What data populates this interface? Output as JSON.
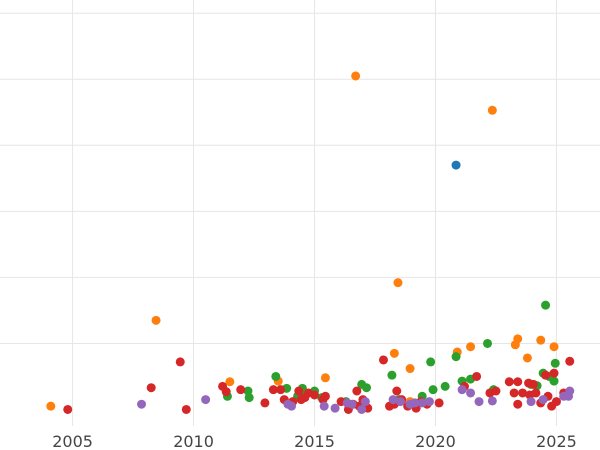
{
  "chart_data": {
    "type": "scatter",
    "title": "",
    "xlabel": "",
    "ylabel": "",
    "xlim": [
      2002.0,
      2026.8
    ],
    "ylim": [
      -0.25,
      6.2
    ],
    "grid": true,
    "legend": "none",
    "x_ticks": [
      2005,
      2010,
      2015,
      2020,
      2025
    ],
    "x_tick_labels": [
      "2005",
      "2010",
      "2015",
      "2020",
      "2025"
    ],
    "y_gridlines": [
      1,
      2,
      3,
      4,
      5,
      6
    ],
    "series": [
      {
        "color": "#1f77b4",
        "points": [
          [
            2020.85,
            3.7
          ]
        ]
      },
      {
        "color": "#ff7f0e",
        "points": [
          [
            2004.1,
            0.05
          ],
          [
            2008.45,
            1.35
          ],
          [
            2011.5,
            0.42
          ],
          [
            2013.5,
            0.43
          ],
          [
            2015.45,
            0.48
          ],
          [
            2016.7,
            5.05
          ],
          [
            2018.3,
            0.85
          ],
          [
            2018.45,
            1.92
          ],
          [
            2018.95,
            0.62
          ],
          [
            2018.95,
            0.12
          ],
          [
            2020.9,
            0.87
          ],
          [
            2021.45,
            0.95
          ],
          [
            2022.35,
            4.53
          ],
          [
            2023.3,
            0.98
          ],
          [
            2023.4,
            1.07
          ],
          [
            2023.8,
            0.78
          ],
          [
            2024.35,
            1.05
          ],
          [
            2024.9,
            0.95
          ]
        ]
      },
      {
        "color": "#2ca02c",
        "points": [
          [
            2011.4,
            0.2
          ],
          [
            2012.25,
            0.28
          ],
          [
            2012.3,
            0.18
          ],
          [
            2013.4,
            0.5
          ],
          [
            2013.85,
            0.32
          ],
          [
            2014.3,
            0.2
          ],
          [
            2014.5,
            0.32
          ],
          [
            2014.6,
            0.25
          ],
          [
            2015.0,
            0.28
          ],
          [
            2015.3,
            0.18
          ],
          [
            2016.3,
            0.12
          ],
          [
            2016.95,
            0.38
          ],
          [
            2017.15,
            0.33
          ],
          [
            2018.2,
            0.52
          ],
          [
            2018.5,
            0.15
          ],
          [
            2019.45,
            0.2
          ],
          [
            2019.8,
            0.72
          ],
          [
            2019.9,
            0.3
          ],
          [
            2020.4,
            0.35
          ],
          [
            2020.85,
            0.8
          ],
          [
            2021.1,
            0.43
          ],
          [
            2021.45,
            0.46
          ],
          [
            2022.15,
            1.0
          ],
          [
            2022.4,
            0.3
          ],
          [
            2023.95,
            0.38
          ],
          [
            2024.2,
            0.36
          ],
          [
            2024.45,
            0.55
          ],
          [
            2024.55,
            1.58
          ],
          [
            2024.7,
            0.5
          ],
          [
            2024.9,
            0.43
          ],
          [
            2024.95,
            0.7
          ]
        ]
      },
      {
        "color": "#d62728",
        "points": [
          [
            2004.8,
            0.0
          ],
          [
            2008.25,
            0.33
          ],
          [
            2009.45,
            0.72
          ],
          [
            2009.7,
            0.0
          ],
          [
            2011.2,
            0.35
          ],
          [
            2011.35,
            0.27
          ],
          [
            2011.95,
            0.3
          ],
          [
            2012.95,
            0.1
          ],
          [
            2013.3,
            0.3
          ],
          [
            2013.6,
            0.3
          ],
          [
            2013.75,
            0.15
          ],
          [
            2014.1,
            0.12
          ],
          [
            2014.35,
            0.28
          ],
          [
            2014.45,
            0.15
          ],
          [
            2014.6,
            0.18
          ],
          [
            2014.75,
            0.25
          ],
          [
            2015.0,
            0.22
          ],
          [
            2015.35,
            0.15
          ],
          [
            2015.45,
            0.2
          ],
          [
            2016.1,
            0.12
          ],
          [
            2016.4,
            0.0
          ],
          [
            2016.6,
            0.08
          ],
          [
            2016.75,
            0.28
          ],
          [
            2016.85,
            0.05
          ],
          [
            2017.0,
            0.15
          ],
          [
            2017.2,
            0.02
          ],
          [
            2017.85,
            0.75
          ],
          [
            2018.1,
            0.05
          ],
          [
            2018.3,
            0.08
          ],
          [
            2018.4,
            0.28
          ],
          [
            2018.6,
            0.15
          ],
          [
            2018.85,
            0.05
          ],
          [
            2019.2,
            0.02
          ],
          [
            2019.4,
            0.12
          ],
          [
            2019.65,
            0.08
          ],
          [
            2020.15,
            0.1
          ],
          [
            2021.2,
            0.35
          ],
          [
            2021.7,
            0.5
          ],
          [
            2022.25,
            0.25
          ],
          [
            2022.5,
            0.28
          ],
          [
            2023.05,
            0.42
          ],
          [
            2023.25,
            0.25
          ],
          [
            2023.4,
            0.08
          ],
          [
            2023.4,
            0.42
          ],
          [
            2023.6,
            0.25
          ],
          [
            2023.85,
            0.4
          ],
          [
            2023.9,
            0.22
          ],
          [
            2024.05,
            0.38
          ],
          [
            2024.15,
            0.25
          ],
          [
            2024.35,
            0.1
          ],
          [
            2024.55,
            0.52
          ],
          [
            2024.65,
            0.2
          ],
          [
            2024.8,
            0.05
          ],
          [
            2024.9,
            0.55
          ],
          [
            2025.0,
            0.12
          ],
          [
            2025.3,
            0.25
          ],
          [
            2025.55,
            0.73
          ]
        ]
      },
      {
        "color": "#9467bd",
        "points": [
          [
            2007.85,
            0.08
          ],
          [
            2010.5,
            0.15
          ],
          [
            2013.9,
            0.08
          ],
          [
            2014.05,
            0.05
          ],
          [
            2015.4,
            0.05
          ],
          [
            2015.85,
            0.02
          ],
          [
            2016.35,
            0.1
          ],
          [
            2016.55,
            0.08
          ],
          [
            2016.95,
            0.0
          ],
          [
            2017.1,
            0.12
          ],
          [
            2018.25,
            0.15
          ],
          [
            2018.55,
            0.12
          ],
          [
            2018.95,
            0.08
          ],
          [
            2019.15,
            0.1
          ],
          [
            2019.45,
            0.1
          ],
          [
            2019.75,
            0.12
          ],
          [
            2021.1,
            0.3
          ],
          [
            2021.45,
            0.25
          ],
          [
            2021.8,
            0.12
          ],
          [
            2022.35,
            0.13
          ],
          [
            2023.95,
            0.12
          ],
          [
            2024.45,
            0.15
          ],
          [
            2025.3,
            0.2
          ],
          [
            2025.5,
            0.2
          ],
          [
            2025.55,
            0.28
          ]
        ]
      }
    ]
  }
}
